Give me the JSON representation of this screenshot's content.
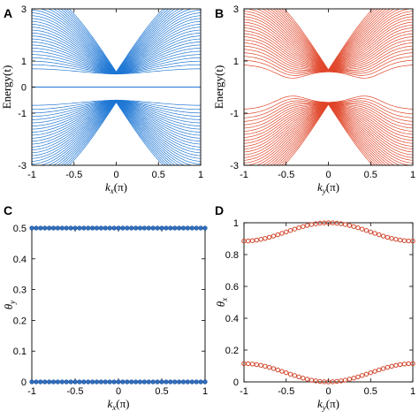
{
  "chart_data": [
    {
      "panel": "A",
      "type": "line",
      "xlabel": "k_x(π)",
      "xlabel_main": "k",
      "xlabel_sub": "x",
      "xlabel_tail": "(π)",
      "ylabel": "Energy(t)",
      "xlim": [
        -1,
        1
      ],
      "ylim": [
        -3,
        3
      ],
      "xticks": [
        "-1",
        "-0.5",
        "0",
        "0.5",
        "1"
      ],
      "yticks": [
        "3",
        "1",
        "0",
        "-1",
        "-3"
      ],
      "color": "#1f77d4",
      "series_description": "nanoribbon band structure: many bands, bulk gap ~±0.5 at k=0, flat zero-energy band",
      "zero_mode": true,
      "gap": 0.5,
      "band_count": 28,
      "grid": false
    },
    {
      "panel": "B",
      "type": "line",
      "xlabel": "k_y(π)",
      "xlabel_main": "k",
      "xlabel_sub": "y",
      "xlabel_tail": "(π)",
      "ylabel": "Energy(t)",
      "xlim": [
        -1,
        1
      ],
      "ylim": [
        -3,
        3
      ],
      "xticks": [
        "-1",
        "-0.5",
        "0",
        "0.5",
        "1"
      ],
      "yticks": [
        "3",
        "1",
        "-1",
        "-3"
      ],
      "color": "#e0462a",
      "zero_mode": false,
      "gap": 0.6,
      "band_count": 28,
      "grid": false
    },
    {
      "panel": "C",
      "type": "scatter",
      "xlabel": "k_x(π)",
      "xlabel_main": "k",
      "xlabel_sub": "x",
      "xlabel_tail": "(π)",
      "ylabel": "θ_y",
      "ylabel_main": "θ",
      "ylabel_sub": "y",
      "xlim": [
        -1,
        1
      ],
      "ylim": [
        0,
        0.5
      ],
      "xticks": [
        "-1",
        "-0.5",
        "0",
        "0.5",
        "1"
      ],
      "yticks": [
        "0.5",
        "0.4",
        "0.3",
        "0.2",
        "0.1",
        "0"
      ],
      "ytick_values": [
        0.5,
        0.4,
        0.3,
        0.2,
        0.1,
        0
      ],
      "color": "#2f6fc0",
      "series": [
        {
          "values_constant": 0.5
        },
        {
          "values_constant": 0.0
        }
      ],
      "n_points": 41,
      "grid": false
    },
    {
      "panel": "D",
      "type": "scatter",
      "xlabel": "k_y(π)",
      "xlabel_main": "k",
      "xlabel_sub": "y",
      "xlabel_tail": "(π)",
      "ylabel": "θ_x",
      "ylabel_main": "θ",
      "ylabel_sub": "x",
      "xlim": [
        -1,
        1
      ],
      "ylim": [
        0,
        1
      ],
      "xticks": [
        "-1",
        "-0.5",
        "0",
        "0.5",
        "1"
      ],
      "yticks": [
        "1",
        "0.8",
        "0.6",
        "0.4",
        "0.2",
        "0"
      ],
      "ytick_values": [
        1,
        0.8,
        0.6,
        0.4,
        0.2,
        0
      ],
      "color": "#d0452a",
      "series": [
        {
          "description": "upper branch",
          "edge": 0.885,
          "center": 1.0
        },
        {
          "description": "lower branch",
          "edge": 0.115,
          "center": 0.0
        }
      ],
      "n_points": 41,
      "grid": false
    }
  ]
}
